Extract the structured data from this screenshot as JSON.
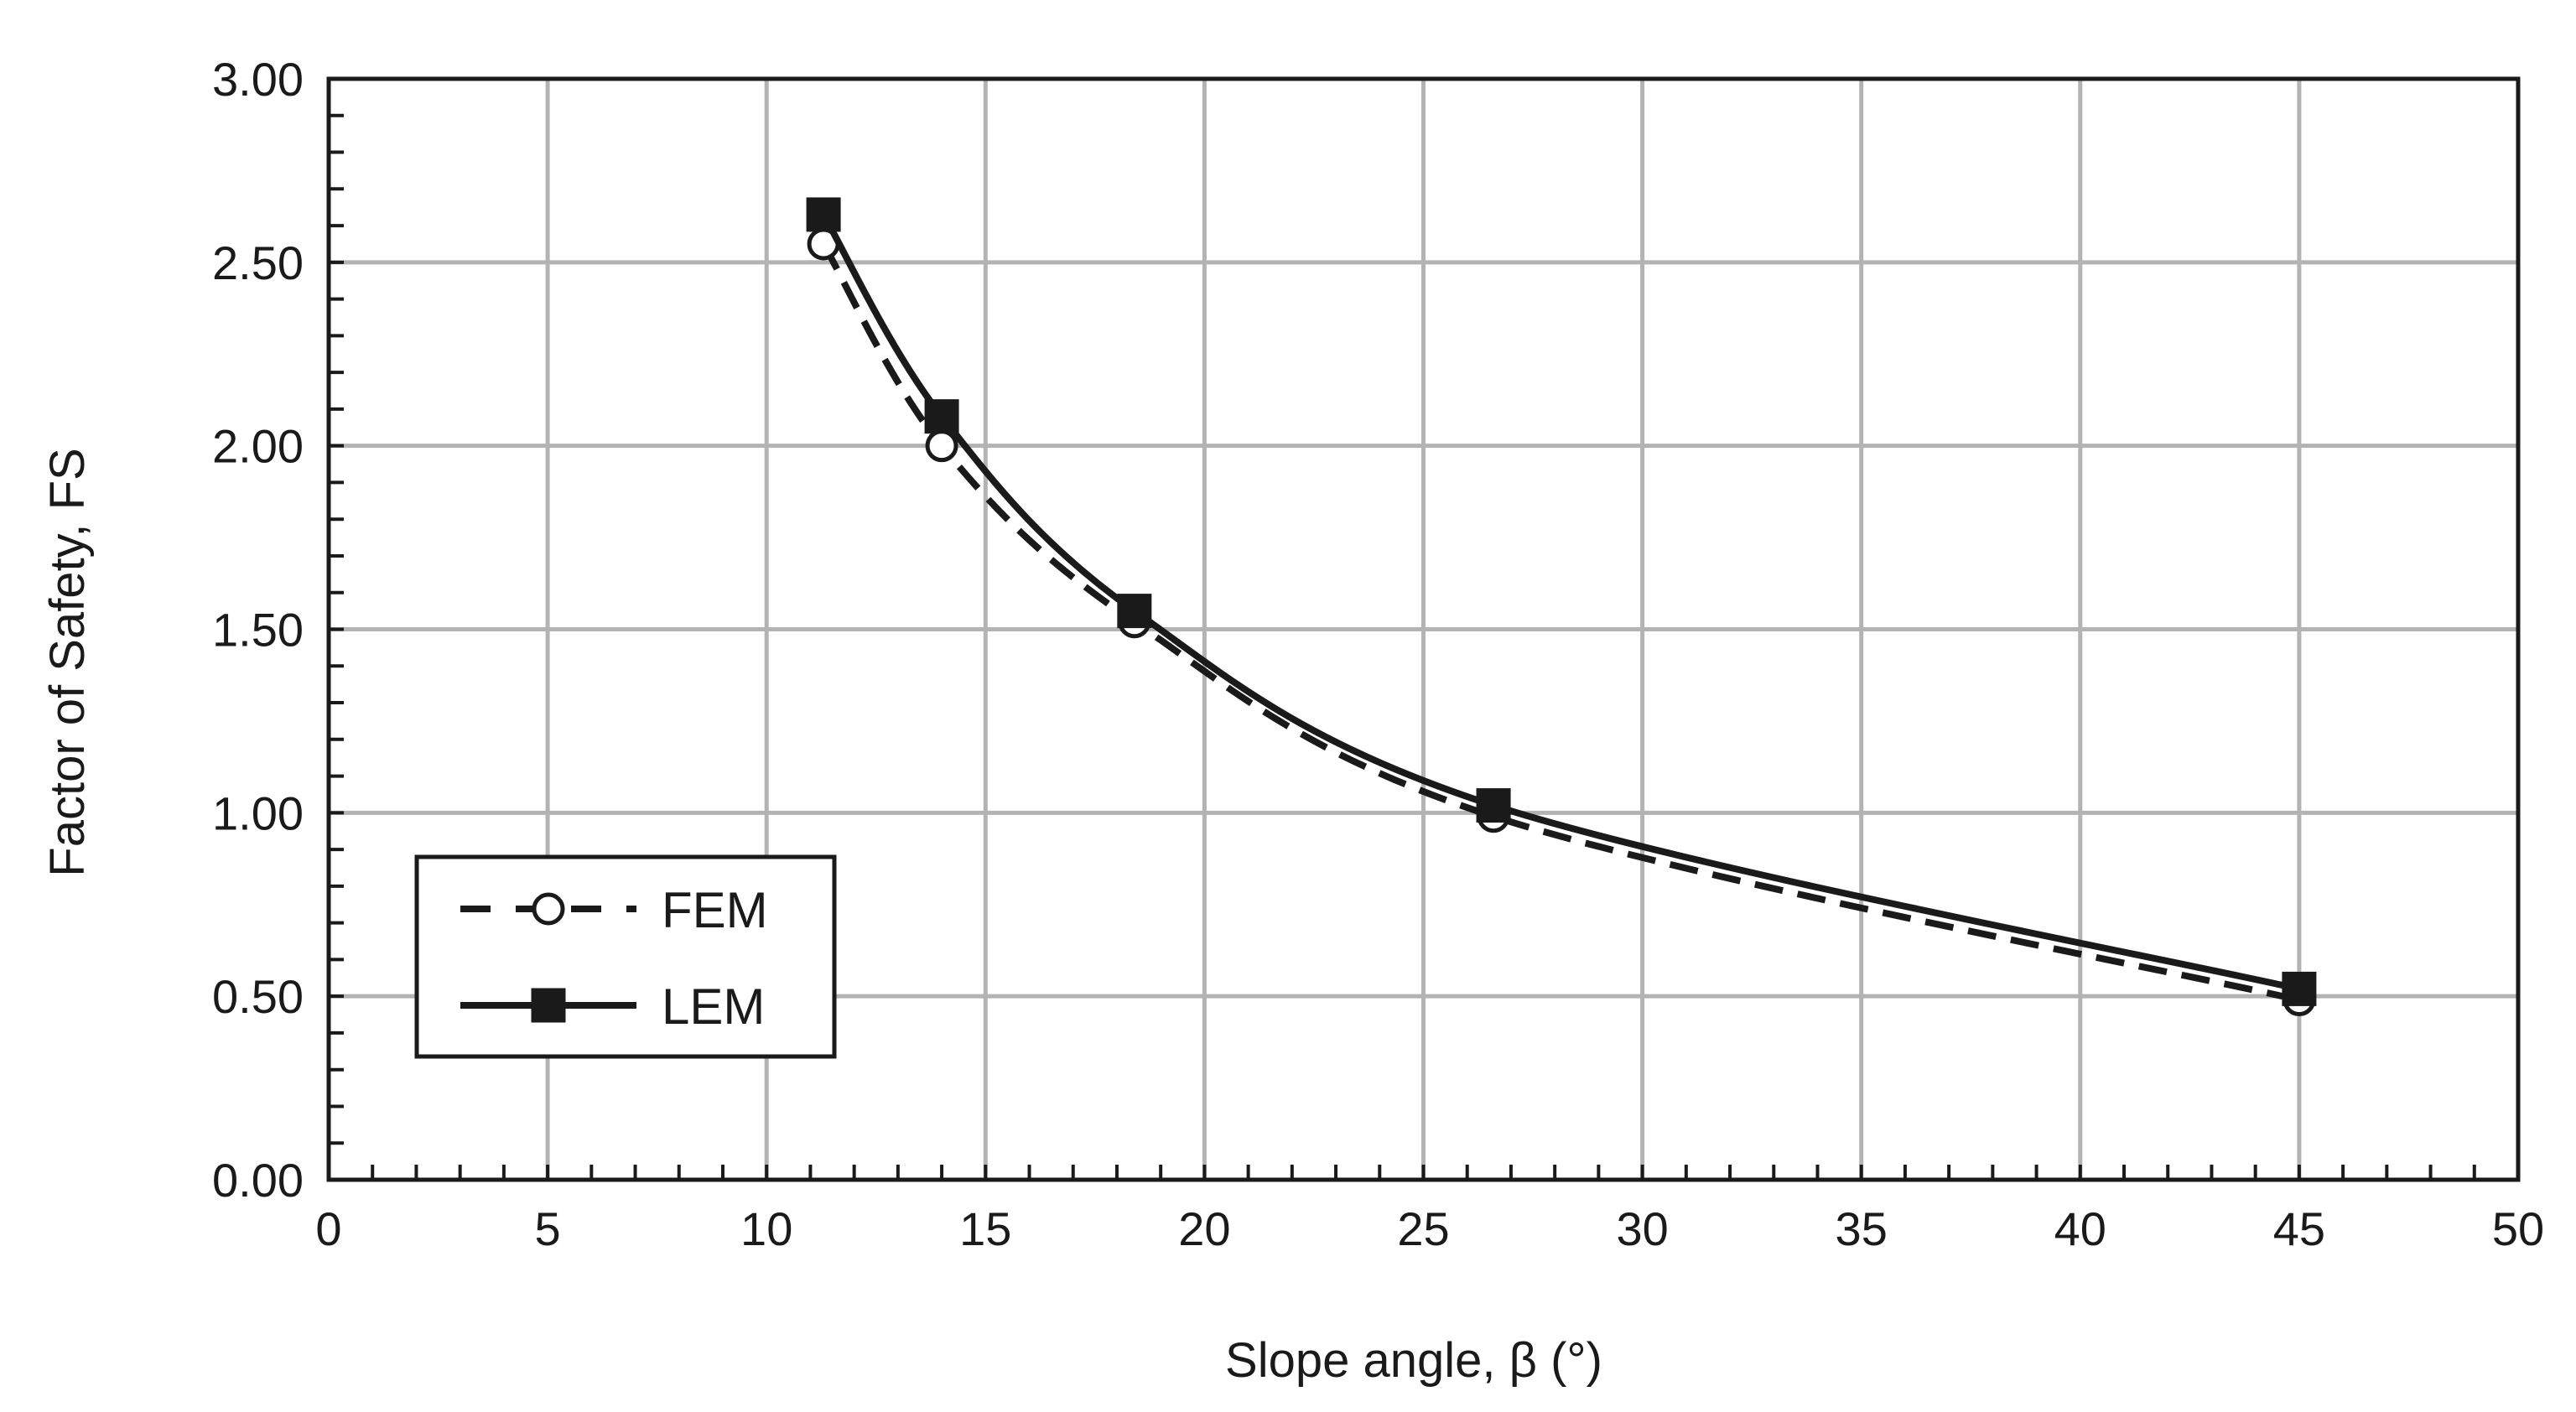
{
  "chart_data": {
    "type": "line",
    "title": "",
    "xlabel": "Slope angle, β (°)",
    "ylabel": "Factor of Safety, FS",
    "xlim": [
      0,
      50
    ],
    "ylim": [
      0,
      3
    ],
    "x_ticks": [
      0,
      5,
      10,
      15,
      20,
      25,
      30,
      35,
      40,
      45,
      50
    ],
    "y_ticks": [
      0,
      0.5,
      1,
      1.5,
      2,
      2.5,
      3
    ],
    "x_tick_labels": [
      "0",
      "5",
      "10",
      "15",
      "20",
      "25",
      "30",
      "35",
      "40",
      "45",
      "50"
    ],
    "y_tick_labels": [
      "0.00",
      "0.50",
      "1.00",
      "1.50",
      "2.00",
      "2.50",
      "3.00"
    ],
    "x_minor_step": 1,
    "y_minor_step": 0.1,
    "grid": true,
    "legend_position": "bottom-left",
    "series": [
      {
        "name": "FEM",
        "style": "dashed",
        "marker": "open-circle",
        "color": "#1a1a1a",
        "x": [
          11.3,
          14.0,
          18.4,
          26.6,
          45.0
        ],
        "y": [
          2.55,
          2.0,
          1.52,
          0.99,
          0.49
        ]
      },
      {
        "name": "LEM",
        "style": "solid",
        "marker": "filled-square",
        "color": "#1a1a1a",
        "x": [
          11.3,
          14.0,
          18.4,
          26.6,
          45.0
        ],
        "y": [
          2.63,
          2.08,
          1.55,
          1.02,
          0.52
        ]
      }
    ]
  }
}
